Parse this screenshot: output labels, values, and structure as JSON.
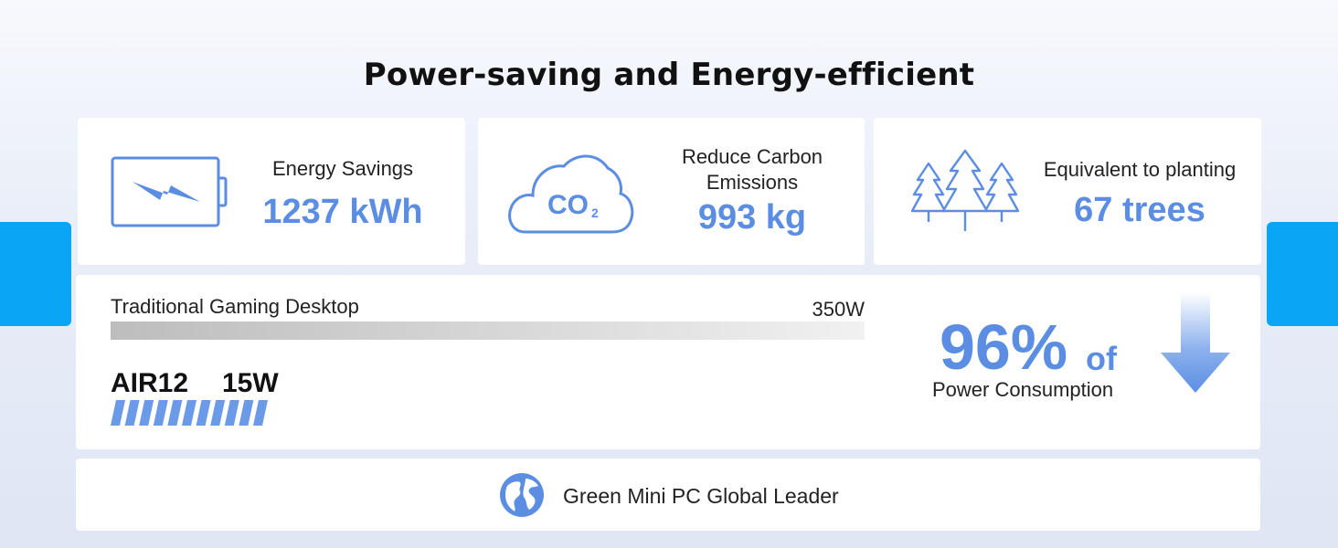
{
  "title": "Power-saving and Energy-efficient",
  "colors": {
    "accent": "#5b8ee3",
    "side_tab": "#0aa6f5",
    "card": "#ffffff"
  },
  "stats": [
    {
      "icon": "battery-bolt-icon",
      "label": "Energy Savings",
      "value": "1237 kWh"
    },
    {
      "icon": "co2-cloud-icon",
      "label_line1": "Reduce Carbon",
      "label_line2": "Emissions",
      "value": "993 kg",
      "icon_text": "CO",
      "icon_sub": "2"
    },
    {
      "icon": "trees-icon",
      "label": "Equivalent to planting",
      "value": "67 trees"
    }
  ],
  "comparison": {
    "traditional_label": "Traditional Gaming Desktop",
    "traditional_watts": "350W",
    "traditional_watts_value": 350,
    "air_label": "AIR12",
    "air_watts": "15W",
    "air_watts_value": 15,
    "percent": "96%",
    "percent_suffix": "of",
    "percent_caption": "Power Consumption",
    "arrow_icon": "down-arrow-icon"
  },
  "footer": {
    "icon": "globe-icon",
    "text": "Green Mini PC Global Leader"
  }
}
